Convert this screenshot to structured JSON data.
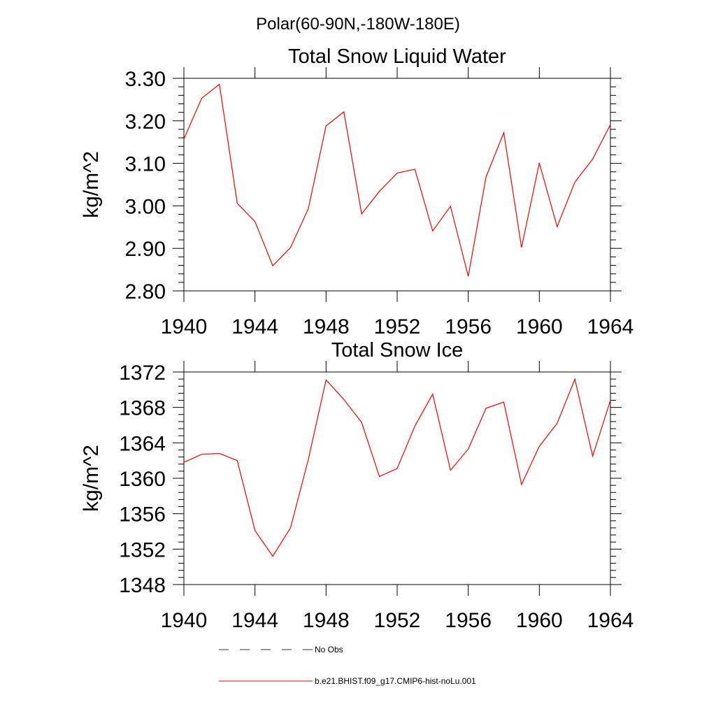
{
  "page_title": "Polar(60-90N,-180W-180E)",
  "chart_data": [
    {
      "type": "line",
      "title": "Total Snow Liquid Water",
      "xlabel": "",
      "ylabel": "kg/m^2",
      "xlim": [
        1940,
        1964
      ],
      "ylim": [
        2.8,
        3.3
      ],
      "x_ticks": [
        1940,
        1944,
        1948,
        1952,
        1956,
        1960,
        1964
      ],
      "y_ticks": [
        "2.80",
        "2.90",
        "3.00",
        "3.10",
        "3.20",
        "3.30"
      ],
      "grid": false,
      "series": [
        {
          "name": "b.e21.BHIST.f09_g17.CMIP6-hist-noLu.001",
          "color": "#ff0000",
          "x": [
            1940,
            1941,
            1942,
            1943,
            1944,
            1945,
            1946,
            1947,
            1948,
            1949,
            1950,
            1951,
            1952,
            1953,
            1954,
            1955,
            1956,
            1957,
            1958,
            1959,
            1960,
            1961,
            1962,
            1963,
            1964
          ],
          "y": [
            3.157,
            3.253,
            3.286,
            3.006,
            2.963,
            2.859,
            2.902,
            2.993,
            3.188,
            3.221,
            2.981,
            3.034,
            3.077,
            3.086,
            2.941,
            2.999,
            2.834,
            3.068,
            3.172,
            2.902,
            3.101,
            2.951,
            3.056,
            3.11,
            3.191
          ]
        }
      ]
    },
    {
      "type": "line",
      "title": "Total Snow Ice",
      "xlabel": "",
      "ylabel": "kg/m^2",
      "xlim": [
        1940,
        1964
      ],
      "ylim": [
        1348,
        1372
      ],
      "x_ticks": [
        1940,
        1944,
        1948,
        1952,
        1956,
        1960,
        1964
      ],
      "y_ticks": [
        "1348",
        "1352",
        "1356",
        "1360",
        "1364",
        "1368",
        "1372"
      ],
      "grid": false,
      "series": [
        {
          "name": "b.e21.BHIST.f09_g17.CMIP6-hist-noLu.001",
          "color": "#ff0000",
          "x": [
            1940,
            1941,
            1942,
            1943,
            1944,
            1945,
            1946,
            1947,
            1948,
            1949,
            1950,
            1951,
            1952,
            1953,
            1954,
            1955,
            1956,
            1957,
            1958,
            1959,
            1960,
            1961,
            1962,
            1963,
            1964
          ],
          "y": [
            1361.8,
            1362.7,
            1362.8,
            1362.0,
            1354.1,
            1351.2,
            1354.4,
            1362.1,
            1371.1,
            1368.9,
            1366.3,
            1360.2,
            1361.1,
            1365.9,
            1369.5,
            1360.9,
            1363.3,
            1367.9,
            1368.6,
            1359.3,
            1363.6,
            1366.2,
            1371.2,
            1362.5,
            1368.8
          ]
        }
      ]
    }
  ],
  "legend": {
    "placement": "bottom",
    "items": [
      {
        "label": "No Obs",
        "style": "dashed",
        "color": "#2b2b6b"
      },
      {
        "label": "b.e21.BHIST.f09_g17.CMIP6-hist-noLu.001",
        "style": "solid",
        "color": "#ff0000"
      }
    ]
  }
}
